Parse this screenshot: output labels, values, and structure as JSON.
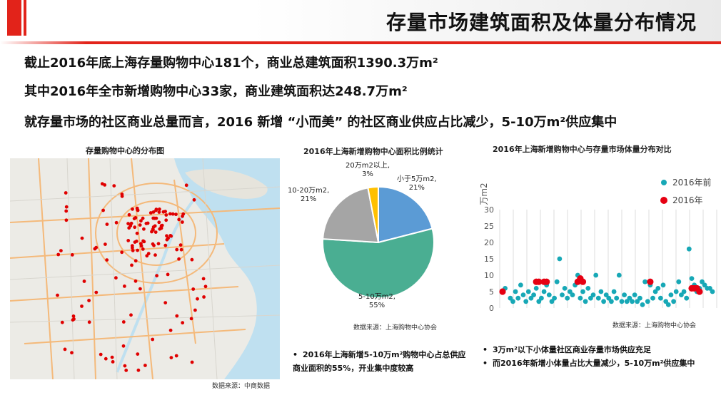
{
  "page": {
    "title": "存量市场建筑面积及体量分布情况",
    "headlines": [
      "截止2016年底上海存量购物中心181个，商业总建筑面积1390.3万m²",
      "其中2016年全市新增购物中心33家，商业建筑面积达248.7万m²",
      "就存量市场的社区商业总量而言，2016 新增 “小而美” 的社区商业供应占比减少，5-10万m²供应集中"
    ],
    "accent_color": "#e2231a"
  },
  "map": {
    "title": "存量购物中心的分布图",
    "source": "数据来源：中商数据",
    "marker_color": "#e00000"
  },
  "chart_data": [
    {
      "type": "pie",
      "title": "2016年上海新增购物中心面积比例统计",
      "source": "数据来源：上海购物中心协会",
      "slices": [
        {
          "label": "小于5万m2,",
          "value_label": "21%",
          "value": 21,
          "color": "#5b9bd5"
        },
        {
          "label": "5-10万m2,",
          "value_label": "55%",
          "value": 55,
          "color": "#4aae92"
        },
        {
          "label": "10-20万m2,",
          "value_label": "21%",
          "value": 21,
          "color": "#a5a5a5"
        },
        {
          "label": "20万m2以上,",
          "value_label": "3%",
          "value": 3,
          "color": "#ffc000"
        }
      ]
    },
    {
      "type": "scatter",
      "title": "2016年上海新增购物中心与存量市场体量分布对比",
      "ylabel": "万m2",
      "ylim": [
        0,
        30
      ],
      "yticks": [
        "0",
        "5",
        "10",
        "15",
        "20",
        "25",
        "30"
      ],
      "grid": "vertical",
      "legend": "top-right",
      "source": "数据来源：上海购物中心协会",
      "series": [
        {
          "name": "2016年前",
          "color": "#17a8b6",
          "points": [
            [
              2,
              6
            ],
            [
              4,
              3
            ],
            [
              5,
              2
            ],
            [
              6,
              5
            ],
            [
              7,
              3
            ],
            [
              8,
              7
            ],
            [
              9,
              4
            ],
            [
              10,
              2
            ],
            [
              11,
              5
            ],
            [
              12,
              3
            ],
            [
              13,
              4
            ],
            [
              14,
              6
            ],
            [
              15,
              2
            ],
            [
              16,
              3
            ],
            [
              17,
              5
            ],
            [
              18,
              7
            ],
            [
              19,
              4
            ],
            [
              20,
              2
            ],
            [
              21,
              3
            ],
            [
              22,
              8
            ],
            [
              23,
              15
            ],
            [
              24,
              4
            ],
            [
              25,
              6
            ],
            [
              26,
              3
            ],
            [
              27,
              5
            ],
            [
              28,
              4
            ],
            [
              29,
              7
            ],
            [
              30,
              10
            ],
            [
              31,
              3
            ],
            [
              32,
              5
            ],
            [
              33,
              2
            ],
            [
              34,
              6
            ],
            [
              35,
              3
            ],
            [
              36,
              4
            ],
            [
              37,
              10
            ],
            [
              38,
              3
            ],
            [
              39,
              5
            ],
            [
              40,
              2
            ],
            [
              41,
              4
            ],
            [
              42,
              3
            ],
            [
              43,
              2
            ],
            [
              44,
              5
            ],
            [
              45,
              3
            ],
            [
              46,
              10
            ],
            [
              47,
              2
            ],
            [
              48,
              4
            ],
            [
              49,
              2
            ],
            [
              50,
              3
            ],
            [
              51,
              2
            ],
            [
              52,
              4
            ],
            [
              53,
              2
            ],
            [
              54,
              3
            ],
            [
              55,
              1
            ],
            [
              56,
              8
            ],
            [
              57,
              2
            ],
            [
              58,
              7
            ],
            [
              59,
              3
            ],
            [
              60,
              5
            ],
            [
              61,
              6
            ],
            [
              62,
              3
            ],
            [
              63,
              7
            ],
            [
              64,
              2
            ],
            [
              65,
              1
            ],
            [
              66,
              4
            ],
            [
              67,
              2
            ],
            [
              68,
              5
            ],
            [
              69,
              8
            ],
            [
              70,
              4
            ],
            [
              71,
              5
            ],
            [
              72,
              3
            ],
            [
              73,
              18
            ],
            [
              74,
              9
            ],
            [
              75,
              7
            ],
            [
              76,
              5
            ],
            [
              77,
              6
            ],
            [
              78,
              8
            ],
            [
              79,
              7
            ],
            [
              80,
              6
            ],
            [
              81,
              6
            ],
            [
              82,
              5
            ]
          ]
        },
        {
          "name": "2016年",
          "color": "#e60012",
          "points": [
            [
              1,
              5
            ],
            [
              14,
              8
            ],
            [
              15,
              8
            ],
            [
              17,
              8
            ],
            [
              18,
              8
            ],
            [
              30,
              8
            ],
            [
              31,
              9
            ],
            [
              32,
              8
            ],
            [
              58,
              8
            ],
            [
              74,
              6
            ],
            [
              75,
              6
            ],
            [
              76,
              6
            ],
            [
              77,
              5
            ]
          ]
        }
      ]
    }
  ],
  "bullets": {
    "left": [
      "2016年上海新增5-10万m²购物中心占总供应商业面积的55%，开业集中度较高"
    ],
    "right": [
      "3万m²以下小体量社区商业存量市场供应充足",
      "而2016年新增小体量占比大量减少，5-10万m²供应集中"
    ]
  }
}
